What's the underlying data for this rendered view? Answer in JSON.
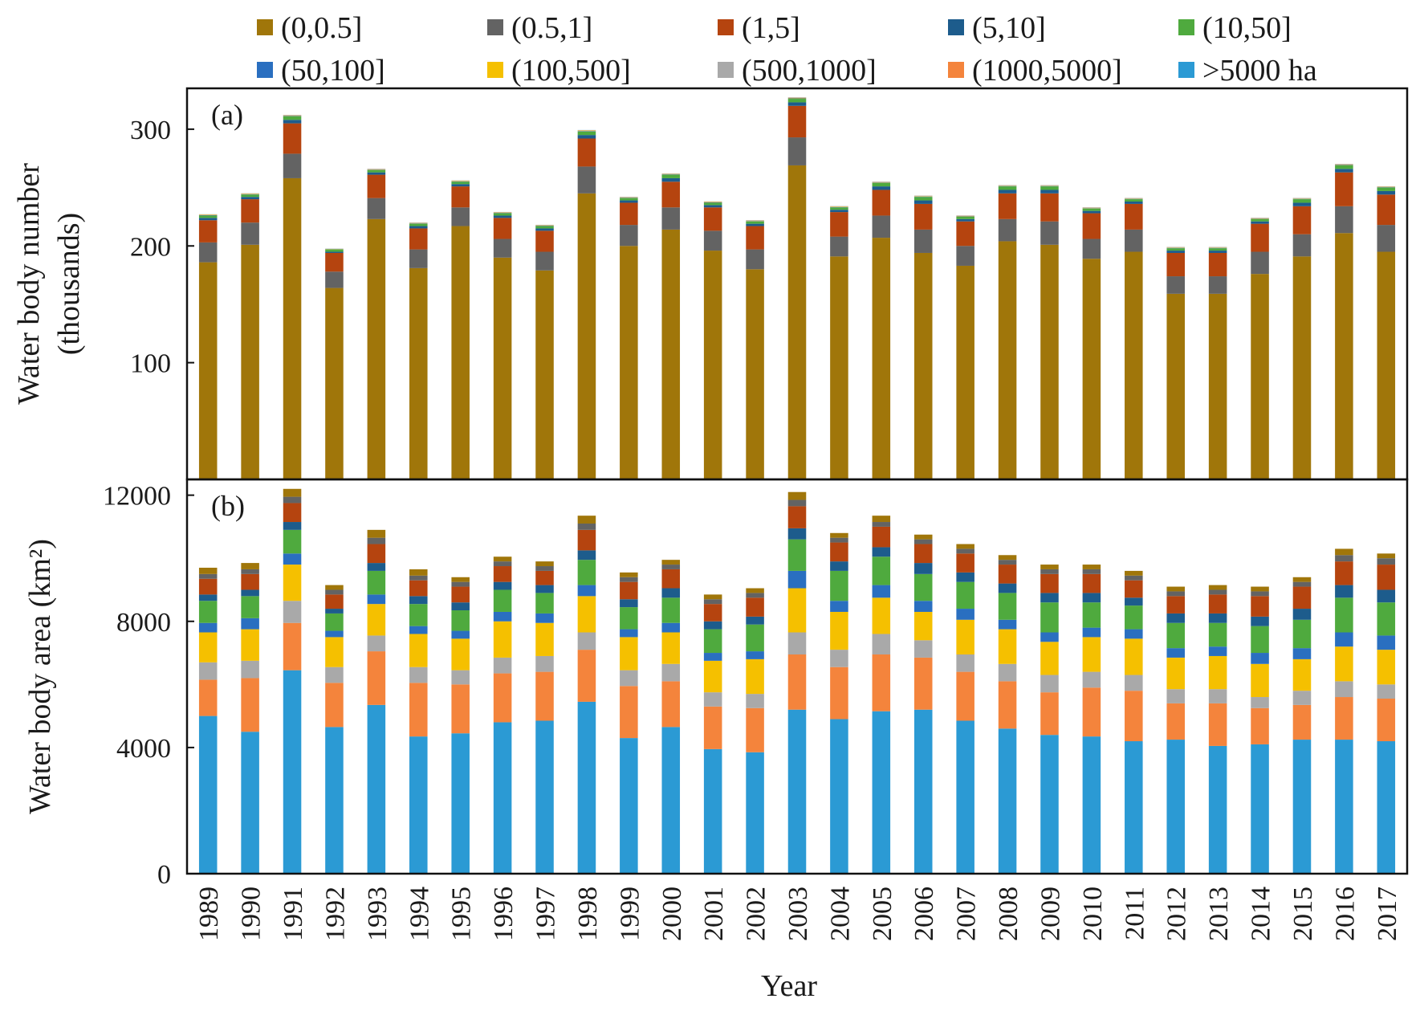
{
  "chart_data": [
    {
      "type": "bar",
      "stacked": true,
      "panel_label": "(a)",
      "title": "",
      "ylabel_line1": "Water body number",
      "ylabel_line2": "(thousands)",
      "xlabel": "Year",
      "ylim": [
        0,
        335
      ],
      "yticks": [
        100,
        200,
        300
      ],
      "categories": [
        "1989",
        "1990",
        "1991",
        "1992",
        "1993",
        "1994",
        "1995",
        "1996",
        "1997",
        "1998",
        "1999",
        "2000",
        "2001",
        "2002",
        "2003",
        "2004",
        "2005",
        "2006",
        "2007",
        "2008",
        "2009",
        "2010",
        "2011",
        "2012",
        "2013",
        "2014",
        "2015",
        "2016",
        "2017"
      ],
      "series": [
        {
          "name": "(0,0.5]",
          "color": "#a0760a",
          "values": [
            186,
            201,
            258,
            164,
            223,
            181,
            217,
            190,
            179,
            245,
            200,
            214,
            196,
            180,
            269,
            191,
            207,
            194,
            183,
            204,
            201,
            189,
            195,
            159,
            159,
            176,
            191,
            211,
            195
          ]
        },
        {
          "name": "(0.5,1]",
          "color": "#636363",
          "values": [
            17,
            19,
            21,
            14,
            18,
            16,
            16,
            16,
            16,
            23,
            18,
            19,
            17,
            17,
            24,
            17,
            19,
            20,
            17,
            19,
            20,
            17,
            19,
            15,
            15,
            19,
            19,
            23,
            23
          ]
        },
        {
          "name": "(1,5]",
          "color": "#b5440f",
          "values": [
            19,
            20,
            26,
            16,
            20,
            18,
            18,
            18,
            18,
            24,
            19,
            22,
            20,
            20,
            27,
            21,
            22,
            22,
            21,
            22,
            24,
            22,
            22,
            20,
            20,
            24,
            24,
            29,
            26
          ]
        },
        {
          "name": "(5,10]",
          "color": "#1d5c8c",
          "values": [
            2,
            2,
            3,
            1,
            2,
            2,
            2,
            2,
            2,
            3,
            2,
            3,
            2,
            2,
            3,
            2,
            3,
            3,
            2,
            3,
            3,
            2,
            2,
            2,
            2,
            2,
            3,
            3,
            3
          ]
        },
        {
          "name": "(10,50]",
          "color": "#4faa3e",
          "values": [
            2,
            2,
            3,
            2,
            2,
            2,
            2,
            2,
            2,
            3,
            2,
            3,
            2,
            2,
            3,
            2,
            3,
            3,
            2,
            3,
            3,
            2,
            2,
            2,
            2,
            2,
            3,
            3,
            3
          ]
        },
        {
          "name": "(50,100]",
          "color": "#2a6fc0",
          "values": [
            0.3,
            0.3,
            0.4,
            0.2,
            0.3,
            0.3,
            0.3,
            0.3,
            0.3,
            0.4,
            0.3,
            0.3,
            0.3,
            0.3,
            0.4,
            0.3,
            0.3,
            0.3,
            0.3,
            0.3,
            0.3,
            0.3,
            0.3,
            0.3,
            0.3,
            0.3,
            0.3,
            0.4,
            0.3
          ]
        },
        {
          "name": "(100,500]",
          "color": "#f5c000",
          "values": [
            0.3,
            0.3,
            0.4,
            0.2,
            0.3,
            0.3,
            0.3,
            0.3,
            0.3,
            0.4,
            0.3,
            0.3,
            0.3,
            0.3,
            0.4,
            0.3,
            0.3,
            0.3,
            0.3,
            0.3,
            0.3,
            0.3,
            0.3,
            0.3,
            0.3,
            0.3,
            0.3,
            0.4,
            0.3
          ]
        },
        {
          "name": "(500,1000]",
          "color": "#a9a9a9",
          "values": [
            0.2,
            0.2,
            0.2,
            0.1,
            0.2,
            0.2,
            0.2,
            0.2,
            0.2,
            0.2,
            0.2,
            0.2,
            0.2,
            0.2,
            0.2,
            0.2,
            0.2,
            0.2,
            0.2,
            0.2,
            0.2,
            0.2,
            0.2,
            0.2,
            0.2,
            0.2,
            0.2,
            0.2,
            0.2
          ]
        },
        {
          "name": "(1000,5000]",
          "color": "#f4843c",
          "values": [
            0.2,
            0.2,
            0.2,
            0.1,
            0.2,
            0.2,
            0.2,
            0.2,
            0.2,
            0.2,
            0.2,
            0.2,
            0.2,
            0.2,
            0.2,
            0.2,
            0.2,
            0.2,
            0.2,
            0.2,
            0.2,
            0.2,
            0.2,
            0.2,
            0.2,
            0.2,
            0.2,
            0.2,
            0.2
          ]
        },
        {
          "name": ">5000 ha",
          "color": "#2b9ad4",
          "values": [
            0.1,
            0.1,
            0.1,
            0.1,
            0.1,
            0.1,
            0.1,
            0.1,
            0.1,
            0.1,
            0.1,
            0.1,
            0.1,
            0.1,
            0.1,
            0.1,
            0.1,
            0.1,
            0.1,
            0.1,
            0.1,
            0.1,
            0.1,
            0.1,
            0.1,
            0.1,
            0.1,
            0.1,
            0.1
          ]
        }
      ]
    },
    {
      "type": "bar",
      "stacked": true,
      "panel_label": "(b)",
      "title": "",
      "ylabel": "Water body area (km²)",
      "xlabel": "Year",
      "ylim": [
        0,
        12500
      ],
      "yticks": [
        0,
        4000,
        8000,
        12000
      ],
      "categories": [
        "1989",
        "1990",
        "1991",
        "1992",
        "1993",
        "1994",
        "1995",
        "1996",
        "1997",
        "1998",
        "1999",
        "2000",
        "2001",
        "2002",
        "2003",
        "2004",
        "2005",
        "2006",
        "2007",
        "2008",
        "2009",
        "2010",
        "2011",
        "2012",
        "2013",
        "2014",
        "2015",
        "2016",
        "2017"
      ],
      "series": [
        {
          "name": ">5000 ha",
          "color": "#2b9ad4",
          "values": [
            5000,
            4500,
            6450,
            4650,
            5350,
            4350,
            4450,
            4800,
            4850,
            5450,
            4300,
            4650,
            3950,
            3850,
            5200,
            4900,
            5150,
            5200,
            4850,
            4600,
            4400,
            4350,
            4200,
            4250,
            4050,
            4100,
            4250,
            4250,
            4200
          ]
        },
        {
          "name": "(1000,5000]",
          "color": "#f4843c",
          "values": [
            1150,
            1700,
            1500,
            1400,
            1700,
            1700,
            1550,
            1550,
            1550,
            1650,
            1650,
            1450,
            1350,
            1400,
            1750,
            1650,
            1800,
            1650,
            1550,
            1500,
            1350,
            1550,
            1600,
            1150,
            1350,
            1150,
            1100,
            1350,
            1350
          ]
        },
        {
          "name": "(500,1000]",
          "color": "#a9a9a9",
          "values": [
            550,
            550,
            700,
            500,
            500,
            500,
            450,
            500,
            500,
            550,
            500,
            550,
            450,
            450,
            700,
            550,
            650,
            550,
            550,
            550,
            550,
            500,
            500,
            450,
            450,
            350,
            450,
            500,
            450
          ]
        },
        {
          "name": "(100,500]",
          "color": "#f5c000",
          "values": [
            950,
            1000,
            1150,
            950,
            1000,
            1050,
            1000,
            1150,
            1050,
            1150,
            1050,
            1000,
            1000,
            1100,
            1400,
            1200,
            1150,
            900,
            1100,
            1100,
            1050,
            1100,
            1150,
            1000,
            1050,
            1050,
            1000,
            1100,
            1100
          ]
        },
        {
          "name": "(50,100]",
          "color": "#2a6fc0",
          "values": [
            300,
            350,
            350,
            200,
            300,
            250,
            250,
            300,
            300,
            350,
            250,
            300,
            250,
            250,
            550,
            350,
            400,
            350,
            350,
            300,
            300,
            300,
            300,
            300,
            300,
            350,
            350,
            450,
            450
          ]
        },
        {
          "name": "(10,50]",
          "color": "#4faa3e",
          "values": [
            700,
            700,
            750,
            550,
            750,
            700,
            650,
            700,
            650,
            800,
            700,
            800,
            750,
            850,
            1000,
            950,
            900,
            850,
            850,
            850,
            950,
            800,
            750,
            800,
            750,
            850,
            900,
            1100,
            1050
          ]
        },
        {
          "name": "(5,10]",
          "color": "#1d5c8c",
          "values": [
            200,
            200,
            250,
            150,
            250,
            250,
            250,
            250,
            250,
            300,
            250,
            300,
            250,
            250,
            350,
            300,
            300,
            350,
            300,
            300,
            300,
            300,
            250,
            300,
            300,
            300,
            350,
            400,
            400
          ]
        },
        {
          "name": "(1,5]",
          "color": "#b5440f",
          "values": [
            500,
            500,
            600,
            450,
            600,
            500,
            500,
            500,
            450,
            650,
            550,
            600,
            550,
            600,
            700,
            600,
            650,
            600,
            600,
            600,
            600,
            600,
            550,
            550,
            600,
            650,
            700,
            750,
            800
          ]
        },
        {
          "name": "(0.5,1]",
          "color": "#636363",
          "values": [
            150,
            150,
            200,
            150,
            200,
            150,
            150,
            150,
            150,
            200,
            150,
            150,
            150,
            150,
            200,
            150,
            150,
            150,
            150,
            150,
            150,
            150,
            150,
            150,
            150,
            150,
            150,
            200,
            200
          ]
        },
        {
          "name": "(0,0.5]",
          "color": "#a0760a",
          "values": [
            200,
            200,
            250,
            150,
            250,
            200,
            150,
            150,
            150,
            250,
            150,
            150,
            150,
            150,
            250,
            150,
            200,
            150,
            150,
            150,
            150,
            150,
            150,
            150,
            150,
            150,
            150,
            200,
            150
          ]
        }
      ]
    }
  ],
  "legend": {
    "entries": [
      {
        "label": "(0,0.5]",
        "color": "#a0760a"
      },
      {
        "label": "(0.5,1]",
        "color": "#636363"
      },
      {
        "label": "(1,5]",
        "color": "#b5440f"
      },
      {
        "label": "(5,10]",
        "color": "#1d5c8c"
      },
      {
        "label": "(10,50]",
        "color": "#4faa3e"
      },
      {
        "label": "(50,100]",
        "color": "#2a6fc0"
      },
      {
        "label": "(100,500]",
        "color": "#f5c000"
      },
      {
        "label": "(500,1000]",
        "color": "#a9a9a9"
      },
      {
        "label": "(1000,5000]",
        "color": "#f4843c"
      },
      {
        "label": ">5000 ha",
        "color": "#2b9ad4"
      }
    ]
  },
  "shared_xlabel": "Year"
}
